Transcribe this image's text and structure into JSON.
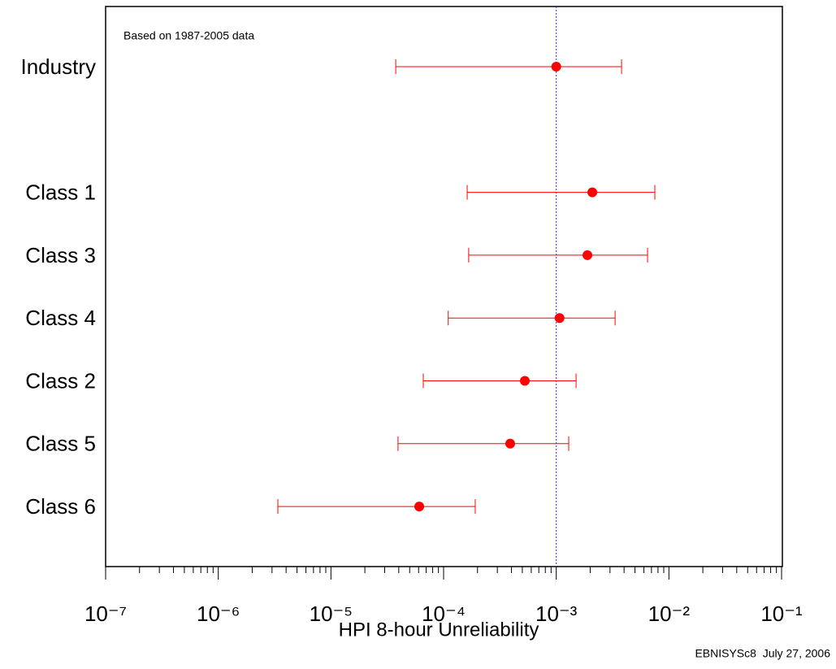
{
  "chart_data": {
    "type": "errorbar",
    "annotation": "Based on 1987-2005 data",
    "footer": "EBNISYSc8  July 27, 2006",
    "x_label": "HPI 8-hour Unreliability",
    "categories": [
      "Industry",
      null,
      "Class 1",
      "Class 3",
      "Class 4",
      "Class 2",
      "Class 5",
      "Class 6"
    ],
    "values": [
      0.001,
      null,
      0.00209,
      0.00189,
      0.00107,
      0.000526,
      0.00039,
      6.08e-05
    ],
    "lower": [
      3.76e-05,
      null,
      0.000162,
      0.000167,
      0.00011,
      6.6e-05,
      3.94e-05,
      3.38e-06
    ],
    "upper": [
      0.0038,
      null,
      0.0075,
      0.00646,
      0.00333,
      0.0015,
      0.00129,
      0.000191
    ],
    "color": "#ff0000",
    "xscale": "log",
    "xlim": [
      1e-07,
      0.1
    ],
    "xticks": [
      {
        "value": 1e-07,
        "label": "10⁻⁷"
      },
      {
        "value": 1e-06,
        "label": "10⁻⁶"
      },
      {
        "value": 1e-05,
        "label": "10⁻⁵"
      },
      {
        "value": 0.0001,
        "label": "10⁻⁴"
      },
      {
        "value": 0.001,
        "label": "10⁻³"
      },
      {
        "value": 0.01,
        "label": "10⁻²"
      },
      {
        "value": 0.1,
        "label": "10⁻¹"
      }
    ],
    "minor_ticks": true,
    "ref_line": {
      "value": 0.001,
      "color": "#3333cc"
    }
  }
}
